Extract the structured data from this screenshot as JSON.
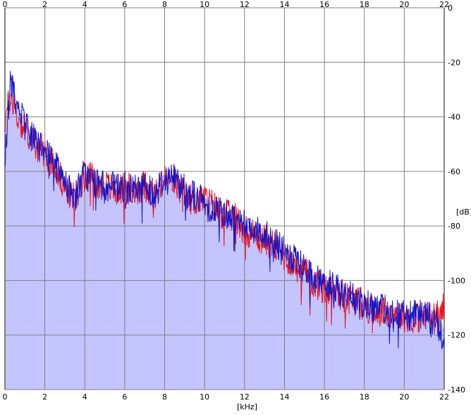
{
  "chart_data": {
    "type": "line",
    "title": "",
    "xlabel": "[kHz]",
    "ylabel": "[dB]",
    "xlim": [
      0,
      22
    ],
    "ylim": [
      -140,
      0
    ],
    "x_ticks": [
      "0",
      "2",
      "4",
      "6",
      "8",
      "10",
      "12",
      "14",
      "16",
      "18",
      "20",
      "22"
    ],
    "y_ticks": [
      "0",
      "-20",
      "-40",
      "-60",
      "-80",
      "-100",
      "-120",
      "-140"
    ],
    "x_tick_values": [
      0,
      2,
      4,
      6,
      8,
      10,
      12,
      14,
      16,
      18,
      20,
      22
    ],
    "y_tick_values": [
      0,
      -20,
      -40,
      -60,
      -80,
      -100,
      -120,
      -140
    ],
    "grid": true,
    "legend": "none",
    "colors": {
      "fill": "#c4c4ff",
      "fill_edge": "#8888ff",
      "red_series": "#e8141e",
      "blue_series": "#1414c8",
      "grid": "#808080"
    },
    "fill_envelope": {
      "x": [
        0,
        0.3,
        0.6,
        1,
        1.5,
        2,
        2.5,
        3,
        3.5,
        4,
        4.5,
        5,
        5.5,
        6,
        6.5,
        7,
        7.5,
        8,
        8.5,
        9,
        9.5,
        10,
        10.5,
        11,
        11.5,
        12,
        12.5,
        13,
        13.5,
        14,
        14.5,
        15,
        15.5,
        16,
        16.5,
        17,
        17.5,
        18,
        18.5,
        19,
        19.5,
        20,
        20.5,
        21,
        21.5,
        22
      ],
      "y": [
        -54,
        -25,
        -35,
        -42,
        -48,
        -52,
        -56,
        -64,
        -68,
        -60,
        -63,
        -64,
        -66,
        -65,
        -66,
        -64,
        -67,
        -62,
        -63,
        -66,
        -68,
        -70,
        -72,
        -74,
        -76,
        -80,
        -82,
        -84,
        -86,
        -90,
        -94,
        -96,
        -99,
        -102,
        -103,
        -105,
        -106,
        -108,
        -110,
        -110,
        -111,
        -112,
        -113,
        -112,
        -113,
        -118
      ]
    },
    "series": [
      {
        "color": "red",
        "x": [
          0,
          0.3,
          0.6,
          1,
          1.5,
          2,
          2.5,
          3,
          3.5,
          4,
          4.5,
          5,
          5.5,
          6,
          6.5,
          7,
          7.5,
          8,
          8.5,
          9,
          9.5,
          10,
          10.5,
          11,
          11.5,
          12,
          12.5,
          13,
          13.5,
          14,
          14.5,
          15,
          15.5,
          16,
          16.5,
          17,
          17.5,
          18,
          18.5,
          19,
          19.5,
          20,
          20.5,
          21,
          21.5,
          22
        ],
        "values": [
          -42,
          -31,
          -40,
          -44,
          -50,
          -53,
          -57,
          -66,
          -70,
          -60,
          -64,
          -65,
          -67,
          -66,
          -67,
          -65,
          -69,
          -63,
          -64,
          -69,
          -71,
          -70,
          -73,
          -76,
          -77,
          -81,
          -83,
          -85,
          -87,
          -91,
          -94,
          -97,
          -101,
          -103,
          -104,
          -106,
          -107,
          -109,
          -111,
          -111,
          -112,
          -113,
          -114,
          -113,
          -114,
          -110
        ]
      },
      {
        "color": "blue",
        "x": [
          0,
          0.3,
          0.6,
          1,
          1.5,
          2,
          2.5,
          3,
          3.5,
          4,
          4.5,
          5,
          5.5,
          6,
          6.5,
          7,
          7.5,
          8,
          8.5,
          9,
          9.5,
          10,
          10.5,
          11,
          11.5,
          12,
          12.5,
          13,
          13.5,
          14,
          14.5,
          15,
          15.5,
          16,
          16.5,
          17,
          17.5,
          18,
          18.5,
          19,
          19.5,
          20,
          20.5,
          21,
          21.5,
          22
        ],
        "values": [
          -54,
          -26,
          -36,
          -43,
          -49,
          -53,
          -57,
          -65,
          -69,
          -61,
          -64,
          -66,
          -66,
          -66,
          -67,
          -65,
          -68,
          -63,
          -62,
          -67,
          -69,
          -72,
          -74,
          -75,
          -77,
          -79,
          -81,
          -83,
          -86,
          -90,
          -93,
          -96,
          -99,
          -101,
          -103,
          -105,
          -107,
          -108,
          -110,
          -111,
          -112,
          -113,
          -113,
          -113,
          -114,
          -122
        ]
      }
    ]
  }
}
